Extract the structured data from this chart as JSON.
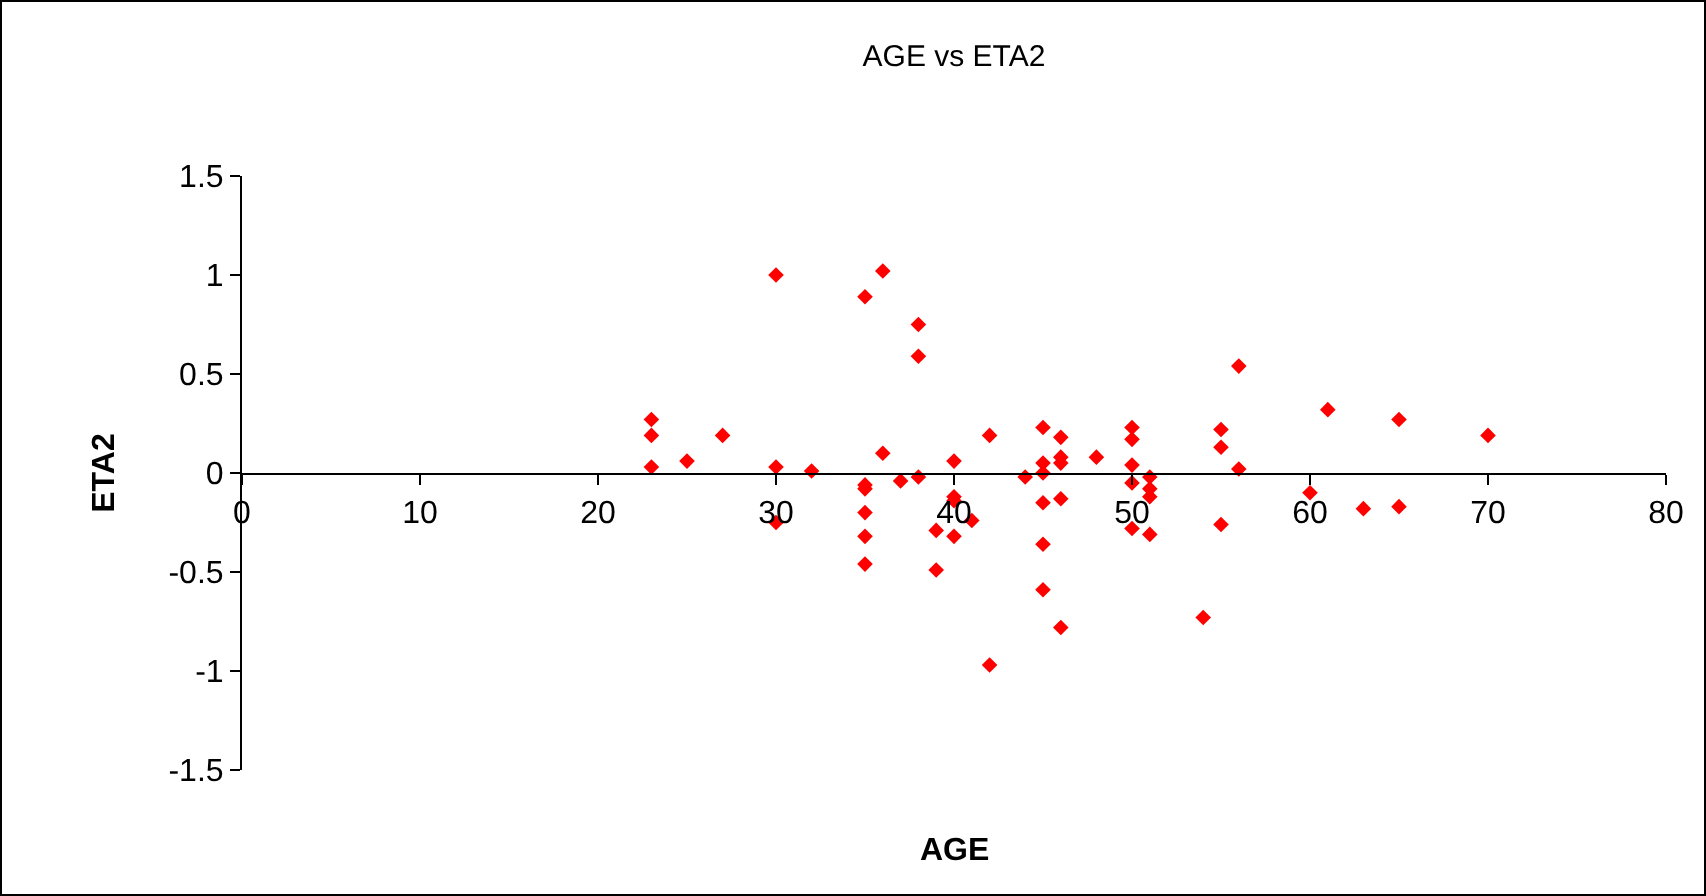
{
  "chart_data": {
    "type": "scatter",
    "title": "AGE vs ETA2",
    "xlabel": "AGE",
    "ylabel": "ETA2",
    "x": [
      23,
      23,
      23,
      25,
      27,
      30,
      30,
      30,
      32,
      35,
      36,
      35,
      35,
      35,
      35,
      35,
      36,
      37,
      38,
      38,
      38,
      39,
      39,
      40,
      40,
      40,
      40,
      41,
      42,
      42,
      44,
      45,
      45,
      45,
      45,
      45,
      45,
      46,
      46,
      46,
      46,
      46,
      48,
      50,
      50,
      50,
      50,
      50,
      51,
      51,
      51,
      51,
      55,
      55,
      55,
      54,
      56,
      56,
      60,
      61,
      63,
      65,
      65,
      70
    ],
    "values": [
      0.27,
      0.19,
      0.03,
      0.06,
      0.19,
      1.0,
      0.03,
      -0.25,
      0.01,
      0.89,
      1.02,
      -0.06,
      -0.08,
      -0.2,
      -0.32,
      -0.46,
      0.1,
      -0.04,
      0.75,
      0.59,
      -0.02,
      -0.29,
      -0.49,
      0.06,
      -0.12,
      -0.14,
      -0.32,
      -0.24,
      0.19,
      -0.97,
      -0.02,
      0.23,
      0.05,
      0.0,
      -0.15,
      -0.36,
      -0.59,
      0.18,
      0.08,
      0.05,
      -0.13,
      -0.78,
      0.08,
      0.23,
      0.17,
      0.04,
      -0.05,
      -0.28,
      -0.02,
      -0.08,
      -0.12,
      -0.31,
      0.22,
      0.13,
      -0.26,
      -0.73,
      0.54,
      0.02,
      -0.1,
      0.32,
      -0.18,
      0.27,
      -0.17,
      0.19
    ],
    "color": "#ff0000",
    "marker": "diamond",
    "xlim": [
      0,
      80
    ],
    "xticks": [
      0,
      10,
      20,
      30,
      40,
      50,
      60,
      70,
      80
    ],
    "ylim": [
      -1.5,
      1.5
    ],
    "yticks": [
      -1.5,
      -1,
      -0.5,
      0,
      0.5,
      1,
      1.5
    ]
  }
}
